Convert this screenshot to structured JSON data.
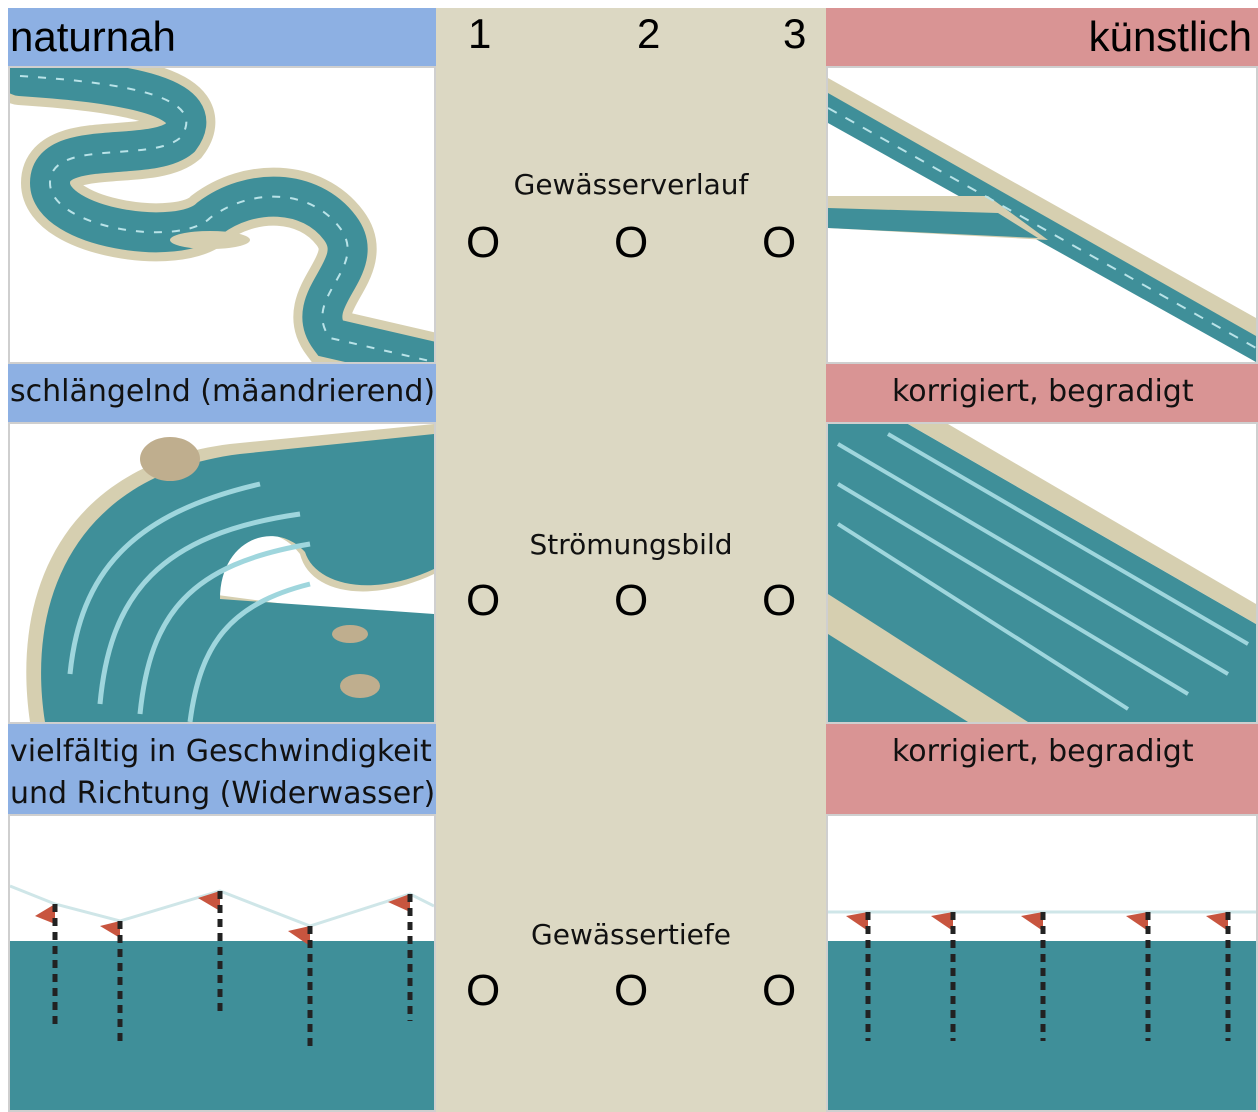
{
  "header": {
    "left_label": "naturnah",
    "right_label": "künstlich",
    "scale": [
      "1",
      "2",
      "3"
    ]
  },
  "rows": [
    {
      "criterion": "Gewässerverlauf",
      "options": [
        "O",
        "O",
        "O"
      ],
      "natural_caption": "schlängelnd (mäandrierend)",
      "artificial_caption": "korrigiert, begradigt"
    },
    {
      "criterion": "Strömungsbild",
      "options": [
        "O",
        "O",
        "O"
      ],
      "natural_caption_lines": [
        "vielfältig in Geschwindigkeit",
        "und Richtung (Widerwasser)"
      ],
      "artificial_caption": "korrigiert, begradigt"
    },
    {
      "criterion": "Gewässertiefe",
      "options": [
        "O",
        "O",
        "O"
      ]
    }
  ],
  "colors": {
    "natural_band": "#8db0e3",
    "artificial_band": "#d99494",
    "center_column": "#dcd8c3",
    "water": "#3f8f99",
    "bank": "#d6cfb0",
    "flag": "#c8553f"
  },
  "icons": [
    "meandering-river-image",
    "straight-canal-image",
    "natural-flow-image",
    "uniform-flow-image",
    "variable-depth-image",
    "uniform-depth-image"
  ]
}
